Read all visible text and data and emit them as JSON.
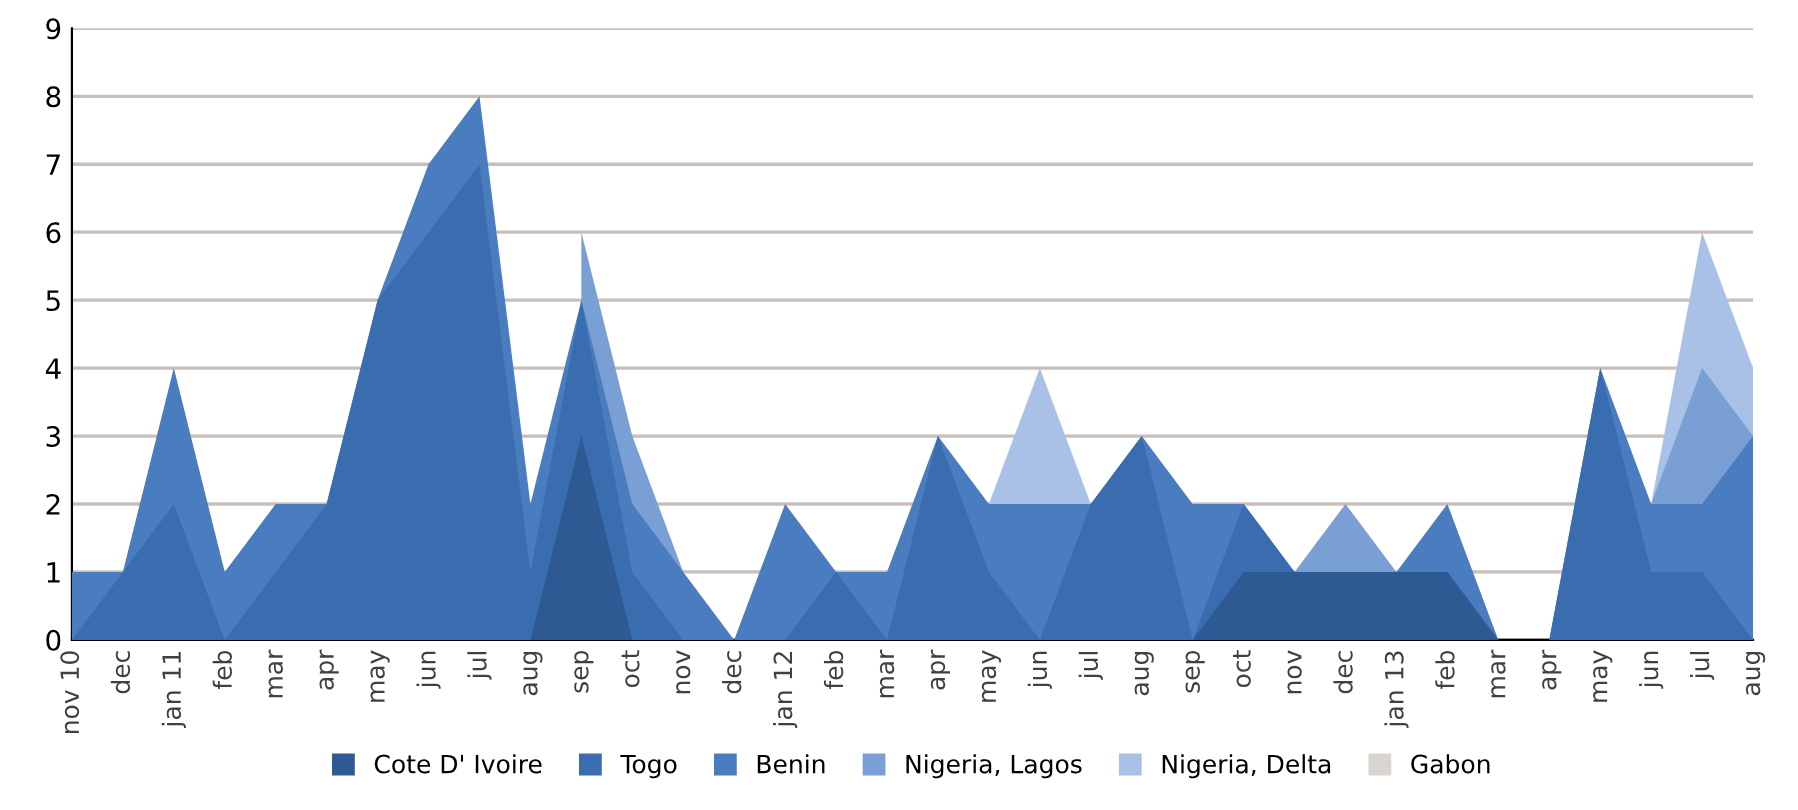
{
  "chart_data": {
    "type": "area",
    "categories": [
      "nov 10",
      "dec",
      "jan 11",
      "feb",
      "mar",
      "apr",
      "may",
      "jun",
      "jul",
      "aug",
      "sep",
      "oct",
      "nov",
      "dec",
      "jan 12",
      "feb",
      "mar",
      "apr",
      "may",
      "jun",
      "jul",
      "aug",
      "sep",
      "oct",
      "nov",
      "dec",
      "jan 13",
      "feb",
      "mar",
      "apr",
      "may",
      "jun",
      "jul",
      "aug"
    ],
    "series": [
      {
        "name": "Cote D' Ivoire",
        "color": "#2e5a94",
        "values": [
          0,
          0,
          0,
          0,
          0,
          0,
          0,
          0,
          0,
          0,
          3,
          0,
          0,
          0,
          0,
          0,
          0,
          0,
          0,
          0,
          0,
          0,
          0,
          1,
          1,
          1,
          1,
          1,
          0,
          0,
          0,
          0,
          0,
          0
        ]
      },
      {
        "name": "Togo",
        "color": "#3a6db0",
        "values": [
          0,
          1,
          2,
          0,
          1,
          2,
          5,
          6,
          7,
          1,
          5,
          1,
          0,
          0,
          0,
          1,
          0,
          3,
          1,
          0,
          2,
          3,
          0,
          2,
          1,
          1,
          1,
          1,
          0,
          0,
          4,
          1,
          1,
          0
        ]
      },
      {
        "name": "Benin",
        "color": "#4a7cc0",
        "values": [
          1,
          1,
          4,
          1,
          2,
          2,
          5,
          7,
          8,
          2,
          5,
          2,
          1,
          0,
          2,
          1,
          1,
          3,
          2,
          2,
          2,
          3,
          2,
          2,
          1,
          1,
          1,
          2,
          0,
          0,
          4,
          2,
          2,
          3
        ]
      },
      {
        "name": "Nigeria, Lagos",
        "color": "#7a9fd4",
        "values": [
          null,
          null,
          null,
          null,
          null,
          null,
          null,
          null,
          null,
          null,
          6,
          3,
          1,
          null,
          null,
          null,
          null,
          null,
          null,
          null,
          null,
          null,
          null,
          null,
          1,
          2,
          1,
          null,
          null,
          null,
          null,
          2,
          4,
          3
        ]
      },
      {
        "name": "Nigeria, Delta",
        "color": "#a9c1e6",
        "values": [
          null,
          null,
          null,
          null,
          null,
          null,
          null,
          null,
          null,
          null,
          null,
          null,
          null,
          null,
          null,
          null,
          null,
          null,
          2,
          4,
          2,
          null,
          null,
          null,
          null,
          null,
          null,
          null,
          null,
          null,
          null,
          2,
          6,
          4
        ]
      },
      {
        "name": "Gabon",
        "color": "#d9d4cf",
        "values": [
          null,
          null,
          null,
          null,
          null,
          null,
          null,
          null,
          null,
          null,
          null,
          null,
          null,
          null,
          null,
          null,
          null,
          null,
          null,
          null,
          null,
          null,
          null,
          null,
          null,
          null,
          null,
          null,
          null,
          null,
          null,
          null,
          null,
          null
        ]
      }
    ],
    "ylim": [
      0,
      9
    ],
    "yticks": [
      0,
      1,
      2,
      3,
      4,
      5,
      6,
      7,
      8,
      9
    ],
    "grid": "y",
    "legend": "bottom"
  }
}
